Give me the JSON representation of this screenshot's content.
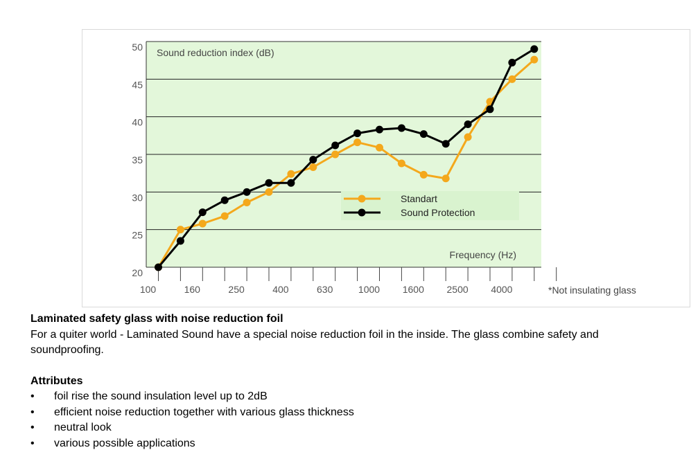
{
  "chart_data": {
    "type": "line",
    "categories": [
      "100",
      "125",
      "160",
      "200",
      "250",
      "315",
      "400",
      "500",
      "630",
      "800",
      "1000",
      "1250",
      "1600",
      "2000",
      "2500",
      "3150",
      "4000",
      "5000"
    ],
    "x_tick_labels": [
      "100",
      "160",
      "250",
      "400",
      "630",
      "1000",
      "1600",
      "2500",
      "4000"
    ],
    "y_tick_labels": [
      "50",
      "45",
      "40",
      "35",
      "30",
      "25",
      "20"
    ],
    "ylim": [
      20,
      50
    ],
    "ylabel": "Sound reduction index (dB)",
    "xlabel": "Frequency (Hz)",
    "note": "*Not insulating glass",
    "grid": true,
    "legend_position": "center-right",
    "series": [
      {
        "name": "Standart",
        "color": "#f4a81c",
        "values": [
          20,
          25,
          25.8,
          26.8,
          28.6,
          30,
          32.4,
          33.3,
          35,
          36.6,
          35.9,
          33.8,
          32.3,
          31.8,
          37.3,
          42,
          45,
          47.6
        ]
      },
      {
        "name": "Sound Protection",
        "color": "#000000",
        "values": [
          20,
          23.5,
          27.3,
          28.9,
          30,
          31.2,
          31.2,
          34.3,
          36.2,
          37.8,
          38.3,
          38.5,
          37.7,
          36.4,
          39,
          41,
          47.2,
          49
        ]
      }
    ]
  },
  "text": {
    "heading": "Laminated safety glass with noise reduction foil",
    "paragraph": "For a quiter world - Laminated  Sound have a special noise reduction foil in the inside. The glass combine safety and soundproofing.",
    "attributes_heading": "Attributes",
    "bullet_symbol": "•",
    "attributes": [
      "foil rise the sound insulation level up to 2dB",
      "efficient noise reduction together with various glass thickness",
      "neutral look",
      "various possible applications"
    ]
  }
}
